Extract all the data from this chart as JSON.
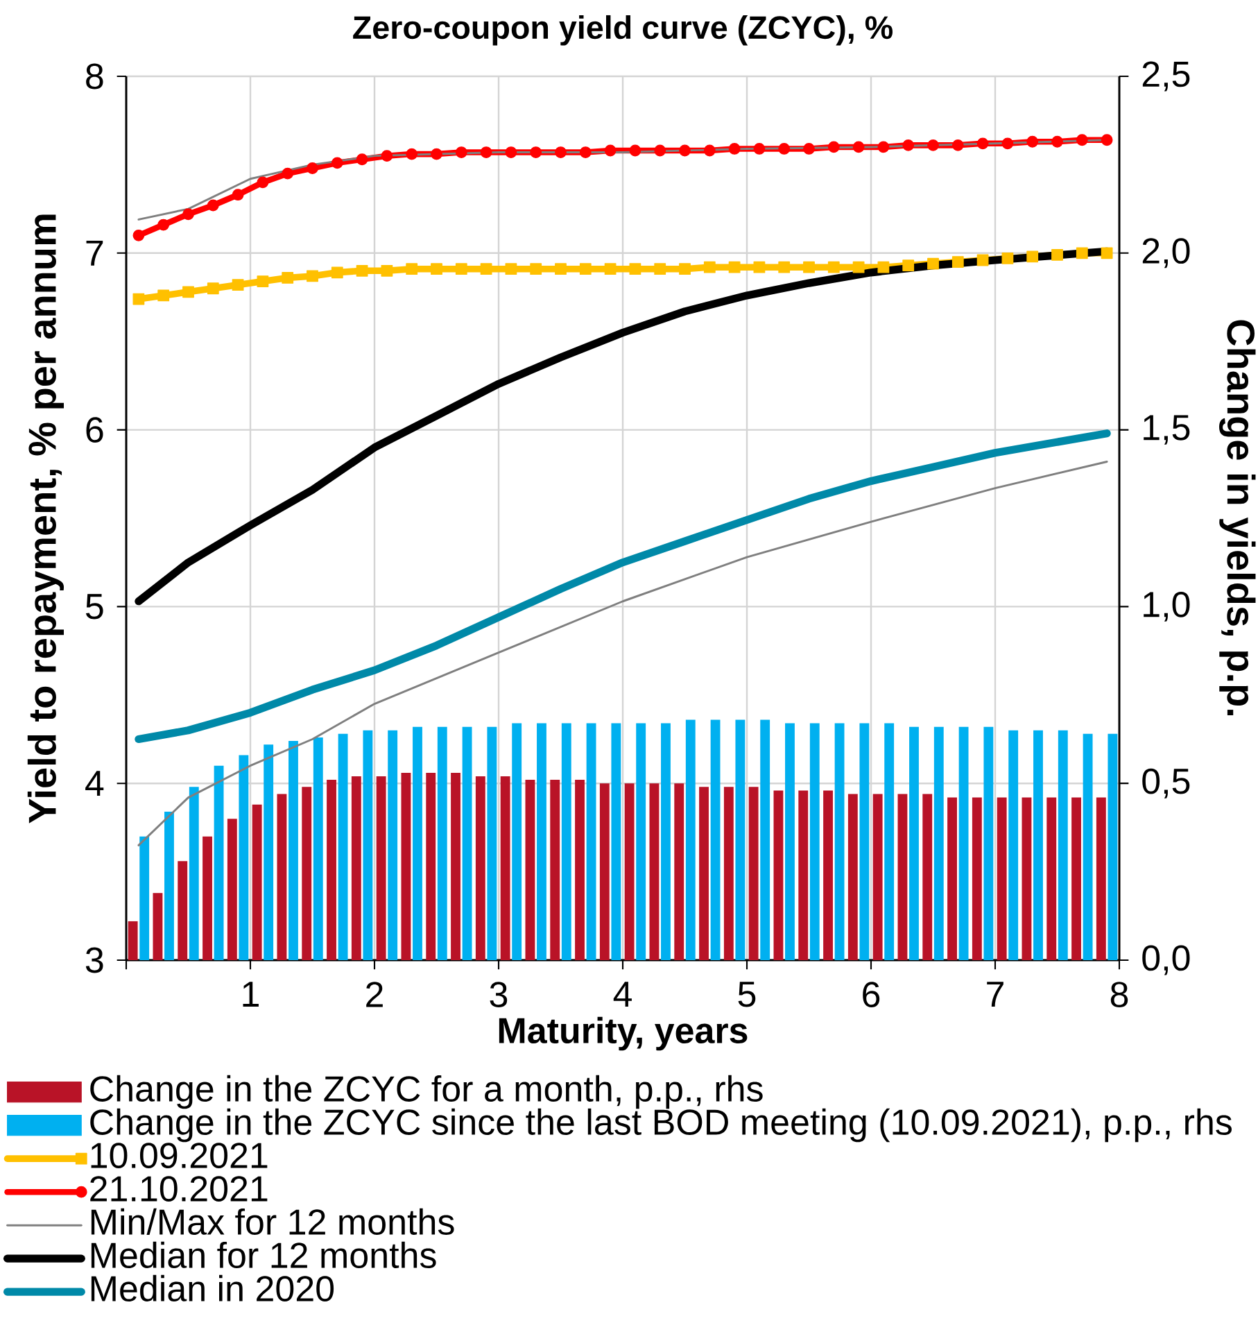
{
  "chart_data": {
    "type": "bar",
    "title": "Zero-coupon yield curve (ZCYC), %",
    "xlabel": "Maturity, years",
    "ylabel": "Yield to repayment, % per annum",
    "y2label": "Change in yields, p.p.",
    "x": [
      0.1,
      0.3,
      0.5,
      0.7,
      0.9,
      1.1,
      1.3,
      1.5,
      1.7,
      1.9,
      2.1,
      2.3,
      2.5,
      2.7,
      2.9,
      3.1,
      3.3,
      3.5,
      3.7,
      3.9,
      4.1,
      4.3,
      4.5,
      4.7,
      4.9,
      5.1,
      5.3,
      5.5,
      5.7,
      5.9,
      6.1,
      6.3,
      6.5,
      6.7,
      6.9,
      7.1,
      7.3,
      7.5,
      7.7,
      7.9
    ],
    "xlim": [
      0,
      8
    ],
    "xticks": [
      {
        "value": 0,
        "label": null
      },
      1,
      2,
      3,
      4,
      5,
      6,
      7,
      8
    ],
    "ylim": [
      3,
      8
    ],
    "yticks": [
      3,
      4,
      5,
      6,
      7,
      8
    ],
    "y2lim": [
      0,
      2.5
    ],
    "y2ticks": [
      {
        "value": 0,
        "label": "0,0"
      },
      {
        "value": 0.5,
        "label": "0,5"
      },
      {
        "value": 1,
        "label": "1,0"
      },
      {
        "value": 1.5,
        "label": "1,5"
      },
      {
        "value": 2,
        "label": "2,0"
      },
      {
        "value": 2.5,
        "label": "2,5"
      }
    ],
    "grid": true,
    "legend": "bottom",
    "series": [
      {
        "name": "Change in the ZCYC for a month, p.p., rhs",
        "axis": "y2",
        "color": "#b91327",
        "values": [
          0.11,
          0.19,
          0.28,
          0.35,
          0.4,
          0.44,
          0.47,
          0.49,
          0.51,
          0.52,
          0.52,
          0.53,
          0.53,
          0.53,
          0.52,
          0.52,
          0.51,
          0.51,
          0.51,
          0.5,
          0.5,
          0.5,
          0.5,
          0.49,
          0.49,
          0.49,
          0.48,
          0.48,
          0.48,
          0.47,
          0.47,
          0.47,
          0.47,
          0.46,
          0.46,
          0.46,
          0.46,
          0.46,
          0.46,
          0.46
        ]
      },
      {
        "name": "Change in the ZCYC since the last BOD meeting (10.09.2021), p.p., rhs",
        "axis": "y2",
        "color": "#00b0f0",
        "values": [
          0.35,
          0.42,
          0.49,
          0.55,
          0.58,
          0.61,
          0.62,
          0.63,
          0.64,
          0.65,
          0.65,
          0.66,
          0.66,
          0.66,
          0.66,
          0.67,
          0.67,
          0.67,
          0.67,
          0.67,
          0.67,
          0.67,
          0.68,
          0.68,
          0.68,
          0.68,
          0.67,
          0.67,
          0.67,
          0.67,
          0.67,
          0.66,
          0.66,
          0.66,
          0.66,
          0.65,
          0.65,
          0.65,
          0.64,
          0.64
        ]
      },
      {
        "name": "10.09.2021",
        "type": "line",
        "color": "#ffc000",
        "marker": "square",
        "values": [
          6.74,
          6.76,
          6.78,
          6.8,
          6.82,
          6.84,
          6.86,
          6.87,
          6.89,
          6.9,
          6.9,
          6.91,
          6.91,
          6.91,
          6.91,
          6.91,
          6.91,
          6.91,
          6.91,
          6.91,
          6.91,
          6.91,
          6.91,
          6.92,
          6.92,
          6.92,
          6.92,
          6.92,
          6.92,
          6.92,
          6.92,
          6.93,
          6.94,
          6.95,
          6.96,
          6.97,
          6.98,
          6.99,
          7.0,
          7.0
        ]
      },
      {
        "name": "21.10.2021",
        "type": "line",
        "color": "#ff0000",
        "marker": "circle",
        "values": [
          7.1,
          7.16,
          7.22,
          7.27,
          7.33,
          7.4,
          7.45,
          7.48,
          7.51,
          7.53,
          7.55,
          7.56,
          7.56,
          7.57,
          7.57,
          7.57,
          7.57,
          7.57,
          7.57,
          7.58,
          7.58,
          7.58,
          7.58,
          7.58,
          7.59,
          7.59,
          7.59,
          7.59,
          7.6,
          7.6,
          7.6,
          7.61,
          7.61,
          7.61,
          7.62,
          7.62,
          7.63,
          7.63,
          7.64,
          7.64
        ]
      },
      {
        "name": "Min/Max for 12 months",
        "type": "line",
        "color": "#7f7f7f",
        "x": [
          0.1,
          0.5,
          1,
          1.5,
          2,
          3,
          4,
          5,
          6,
          7,
          7.9
        ],
        "values": [
          3.65,
          3.92,
          4.1,
          4.25,
          4.45,
          4.74,
          5.03,
          5.28,
          5.48,
          5.67,
          5.82
        ]
      },
      {
        "type": "line",
        "color": "#7f7f7f",
        "x": [
          0.1,
          0.5,
          1,
          1.5,
          2,
          3,
          4,
          5,
          6,
          7,
          7.9
        ],
        "values": [
          7.19,
          7.25,
          7.42,
          7.5,
          7.55,
          7.57,
          7.57,
          7.59,
          7.6,
          7.62,
          7.64
        ]
      },
      {
        "name": "Median for 12 months",
        "type": "line",
        "color": "#000000",
        "x": [
          0.1,
          0.5,
          1,
          1.5,
          2,
          2.5,
          3,
          3.5,
          4,
          4.5,
          5,
          5.5,
          6,
          6.5,
          7,
          7.9
        ],
        "values": [
          5.03,
          5.25,
          5.46,
          5.66,
          5.9,
          6.08,
          6.26,
          6.41,
          6.55,
          6.67,
          6.76,
          6.83,
          6.89,
          6.93,
          6.96,
          7.01
        ]
      },
      {
        "name": "Median in 2020",
        "type": "line",
        "color": "#0089a8",
        "x": [
          0.1,
          0.5,
          1,
          1.5,
          2,
          2.5,
          3,
          3.5,
          4,
          4.5,
          5,
          5.5,
          6,
          6.5,
          7,
          7.9
        ],
        "values": [
          4.25,
          4.3,
          4.4,
          4.53,
          4.64,
          4.78,
          4.94,
          5.1,
          5.25,
          5.37,
          5.49,
          5.61,
          5.71,
          5.79,
          5.87,
          5.98
        ]
      }
    ]
  }
}
